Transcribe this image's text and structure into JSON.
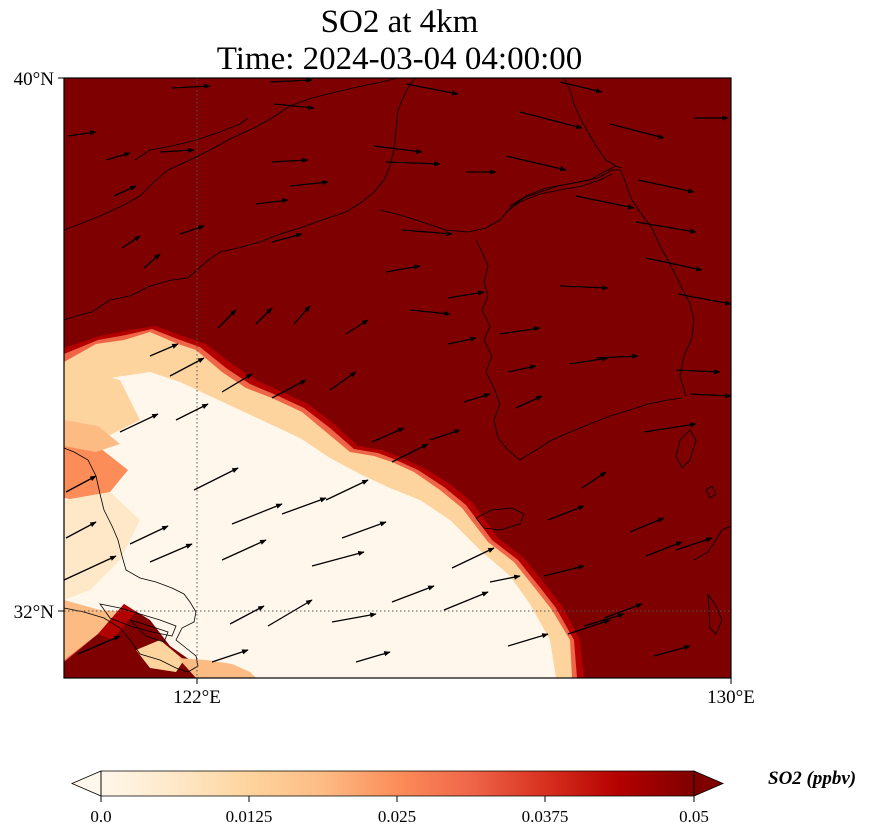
{
  "title": {
    "line1": "SO2 at 4km",
    "line2": "Time: 2024-03-04 04:00:00"
  },
  "map": {
    "lon_range": [
      120,
      130
    ],
    "lat_range": [
      31,
      40
    ],
    "lat_ticks": [
      {
        "value": 40,
        "label": "40°N"
      },
      {
        "value": 32,
        "label": "32°N"
      }
    ],
    "lon_ticks": [
      {
        "value": 122,
        "label": "122°E"
      },
      {
        "value": 130,
        "label": "130°E"
      }
    ],
    "gridlines": true,
    "field_color_high": "#7f0000",
    "field_color_low": "#fff7ec",
    "wind_vectors": true
  },
  "colorbar": {
    "label": "SO2 (ppbv)",
    "ticks": [
      "0.0",
      "0.0125",
      "0.025",
      "0.0375",
      "0.05"
    ],
    "vmin": 0.0,
    "vmax": 0.05,
    "colormap": "OrRd",
    "colors": [
      "#fff7ec",
      "#fee8c8",
      "#fdd49e",
      "#fdbb84",
      "#fc8d59",
      "#ef6548",
      "#d7301f",
      "#b30000",
      "#7f0000"
    ],
    "extend": "both"
  }
}
